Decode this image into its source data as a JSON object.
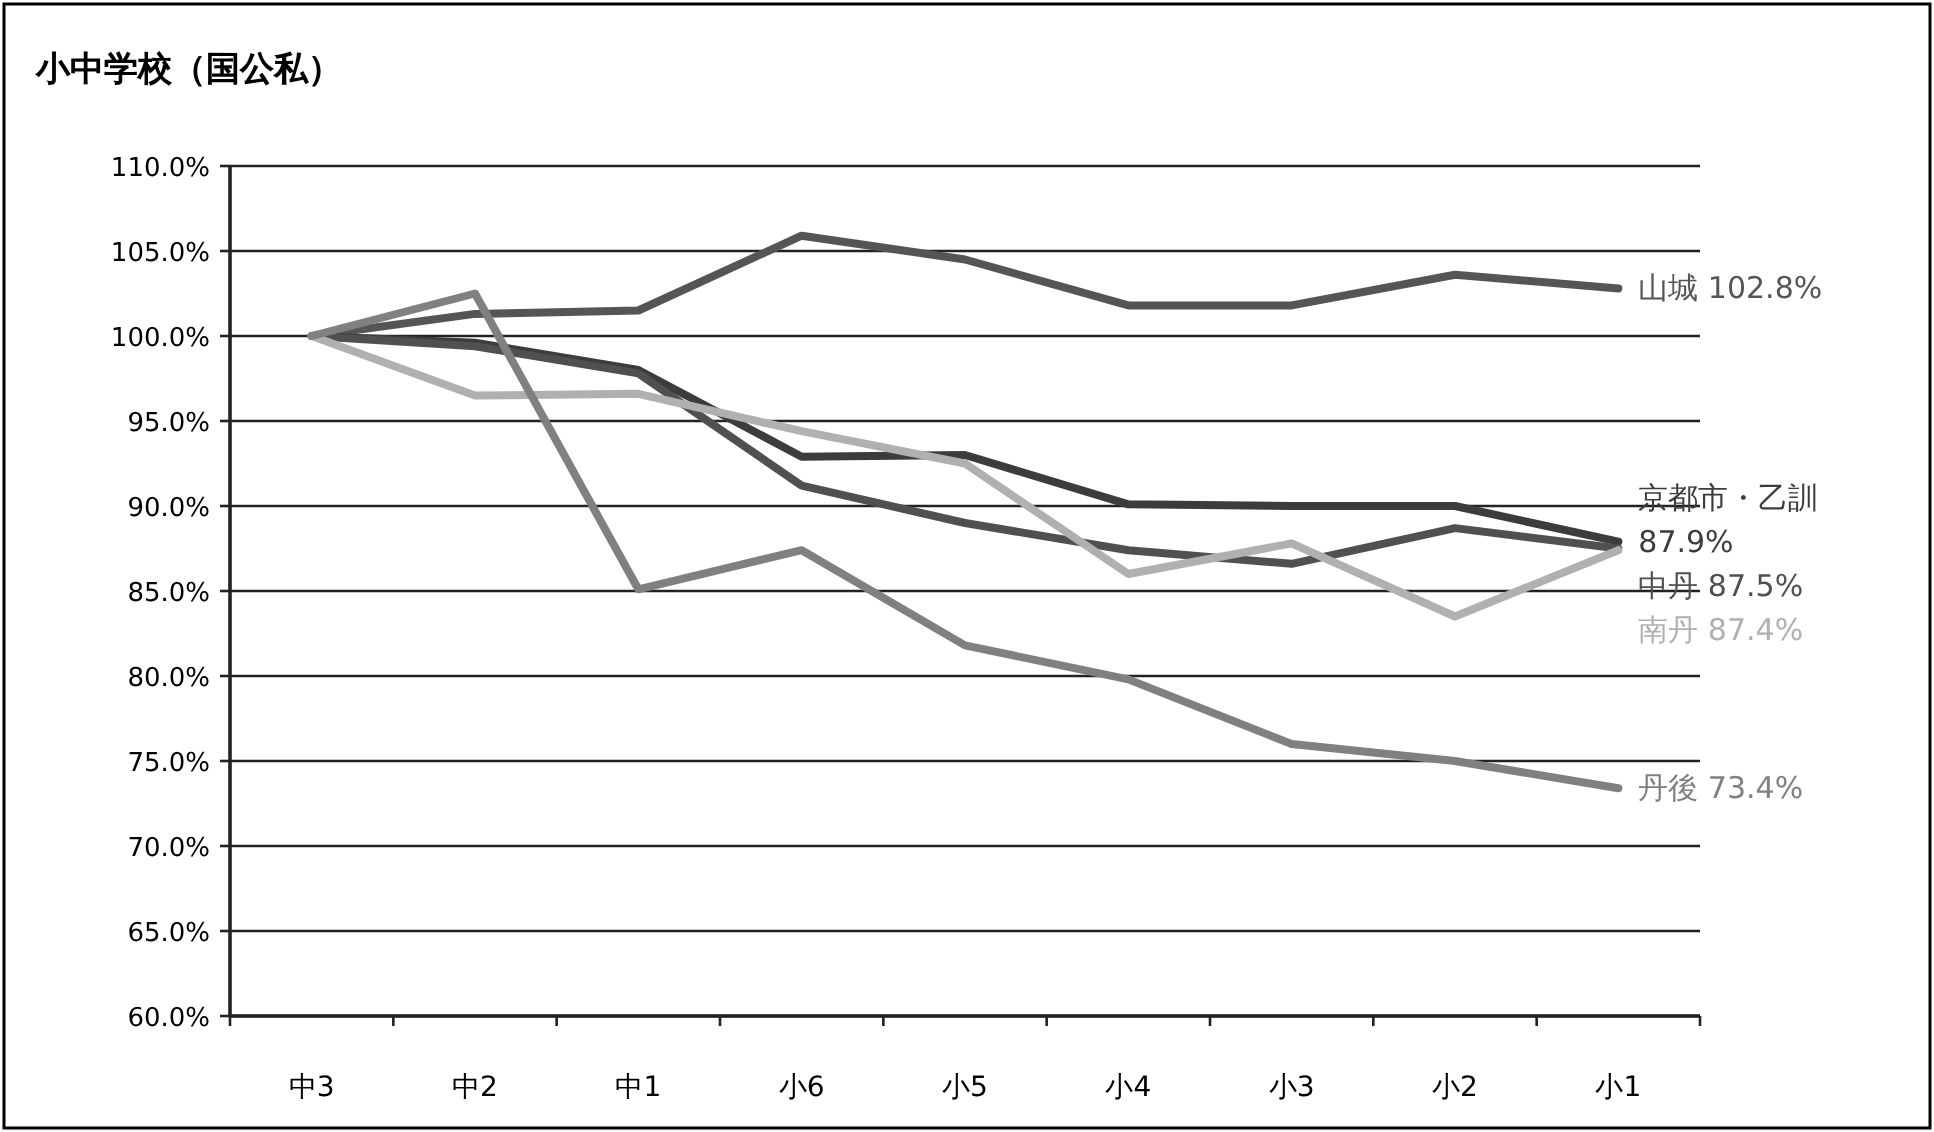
{
  "chart_data": {
    "type": "line",
    "title": "小中学校（国公私）",
    "categories": [
      "中3",
      "中2",
      "中1",
      "小6",
      "小5",
      "小4",
      "小3",
      "小2",
      "小1"
    ],
    "ylim": [
      60,
      110
    ],
    "yticks": [
      {
        "value": 60,
        "label": "60.0%"
      },
      {
        "value": 65,
        "label": "65.0%"
      },
      {
        "value": 70,
        "label": "70.0%"
      },
      {
        "value": 75,
        "label": "75.0%"
      },
      {
        "value": 80,
        "label": "80.0%"
      },
      {
        "value": 85,
        "label": "85.0%"
      },
      {
        "value": 90,
        "label": "90.0%"
      },
      {
        "value": 95,
        "label": "95.0%"
      },
      {
        "value": 100,
        "label": "100.0%"
      },
      {
        "value": 105,
        "label": "105.0%"
      },
      {
        "value": 110,
        "label": "110.0%"
      }
    ],
    "grid": "y",
    "marker": "none",
    "line_style": "solid",
    "series": [
      {
        "name": "山城",
        "color": "#555555",
        "values": [
          100,
          101.3,
          101.5,
          105.9,
          104.5,
          101.8,
          101.8,
          103.6,
          102.8
        ],
        "value_labels": [
          null,
          null,
          null,
          null,
          null,
          null,
          null,
          null,
          "102.8%"
        ]
      },
      {
        "name": "京都市・乙訓",
        "color": "#3c3c3c",
        "values": [
          100,
          99.6,
          98.0,
          92.9,
          93.0,
          90.1,
          90.0,
          90.0,
          87.9
        ],
        "value_labels": [
          null,
          null,
          null,
          null,
          null,
          null,
          null,
          null,
          "87.9%"
        ]
      },
      {
        "name": "中丹",
        "color": "#505050",
        "values": [
          100,
          99.4,
          97.8,
          91.2,
          89.0,
          87.4,
          86.6,
          88.7,
          87.5
        ],
        "value_labels": [
          null,
          null,
          null,
          null,
          null,
          null,
          null,
          null,
          "87.5%"
        ]
      },
      {
        "name": "南丹",
        "color": "#b0b0b0",
        "values": [
          100,
          96.5,
          96.6,
          94.4,
          92.5,
          86.0,
          87.8,
          83.5,
          87.4
        ],
        "value_labels": [
          null,
          null,
          null,
          null,
          null,
          null,
          null,
          null,
          "87.4%"
        ]
      },
      {
        "name": "丹後",
        "color": "#808080",
        "values": [
          100,
          102.5,
          85.1,
          87.4,
          81.8,
          79.8,
          76.0,
          75.0,
          73.4
        ],
        "value_labels": [
          null,
          null,
          null,
          null,
          null,
          null,
          null,
          null,
          "73.4%"
        ]
      }
    ]
  }
}
